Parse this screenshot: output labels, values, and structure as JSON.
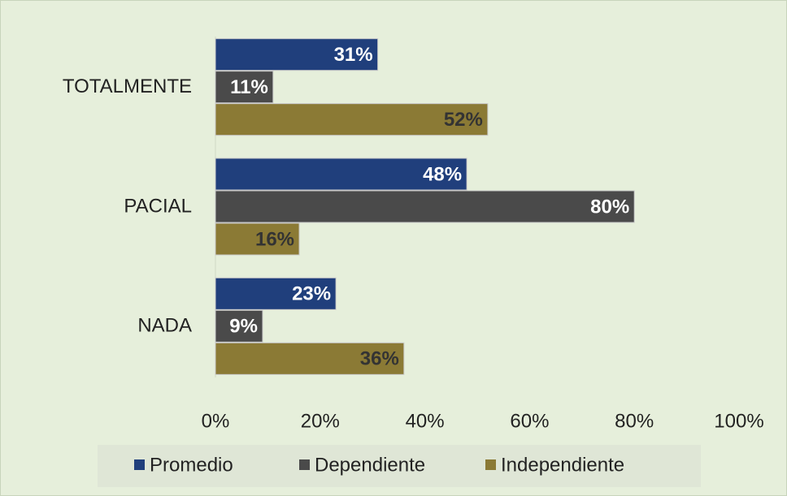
{
  "chart_data": {
    "type": "hbar",
    "categories": [
      "TOTALMENTE",
      "PACIAL",
      "NADA"
    ],
    "series": [
      {
        "name": "Promedio",
        "color": "#203f7c",
        "values": [
          31,
          48,
          23
        ],
        "value_labels": [
          "31%",
          "48%",
          "23%"
        ]
      },
      {
        "name": "Dependiente",
        "color": "#4a4a4a",
        "values": [
          11,
          80,
          9
        ],
        "value_labels": [
          "11%",
          "80%",
          "9%"
        ]
      },
      {
        "name": "Independiente",
        "color": "#8b7a35",
        "values": [
          52,
          16,
          36
        ],
        "value_labels": [
          "52%",
          "16%",
          "36%"
        ]
      }
    ],
    "xlim": [
      0,
      100
    ],
    "xticks": [
      {
        "value": 0,
        "label": "0%"
      },
      {
        "value": 20,
        "label": "20%"
      },
      {
        "value": 40,
        "label": "40%"
      },
      {
        "value": 60,
        "label": "60%"
      },
      {
        "value": 80,
        "label": "80%"
      },
      {
        "value": 100,
        "label": "100%"
      }
    ],
    "legend": "bottom"
  }
}
